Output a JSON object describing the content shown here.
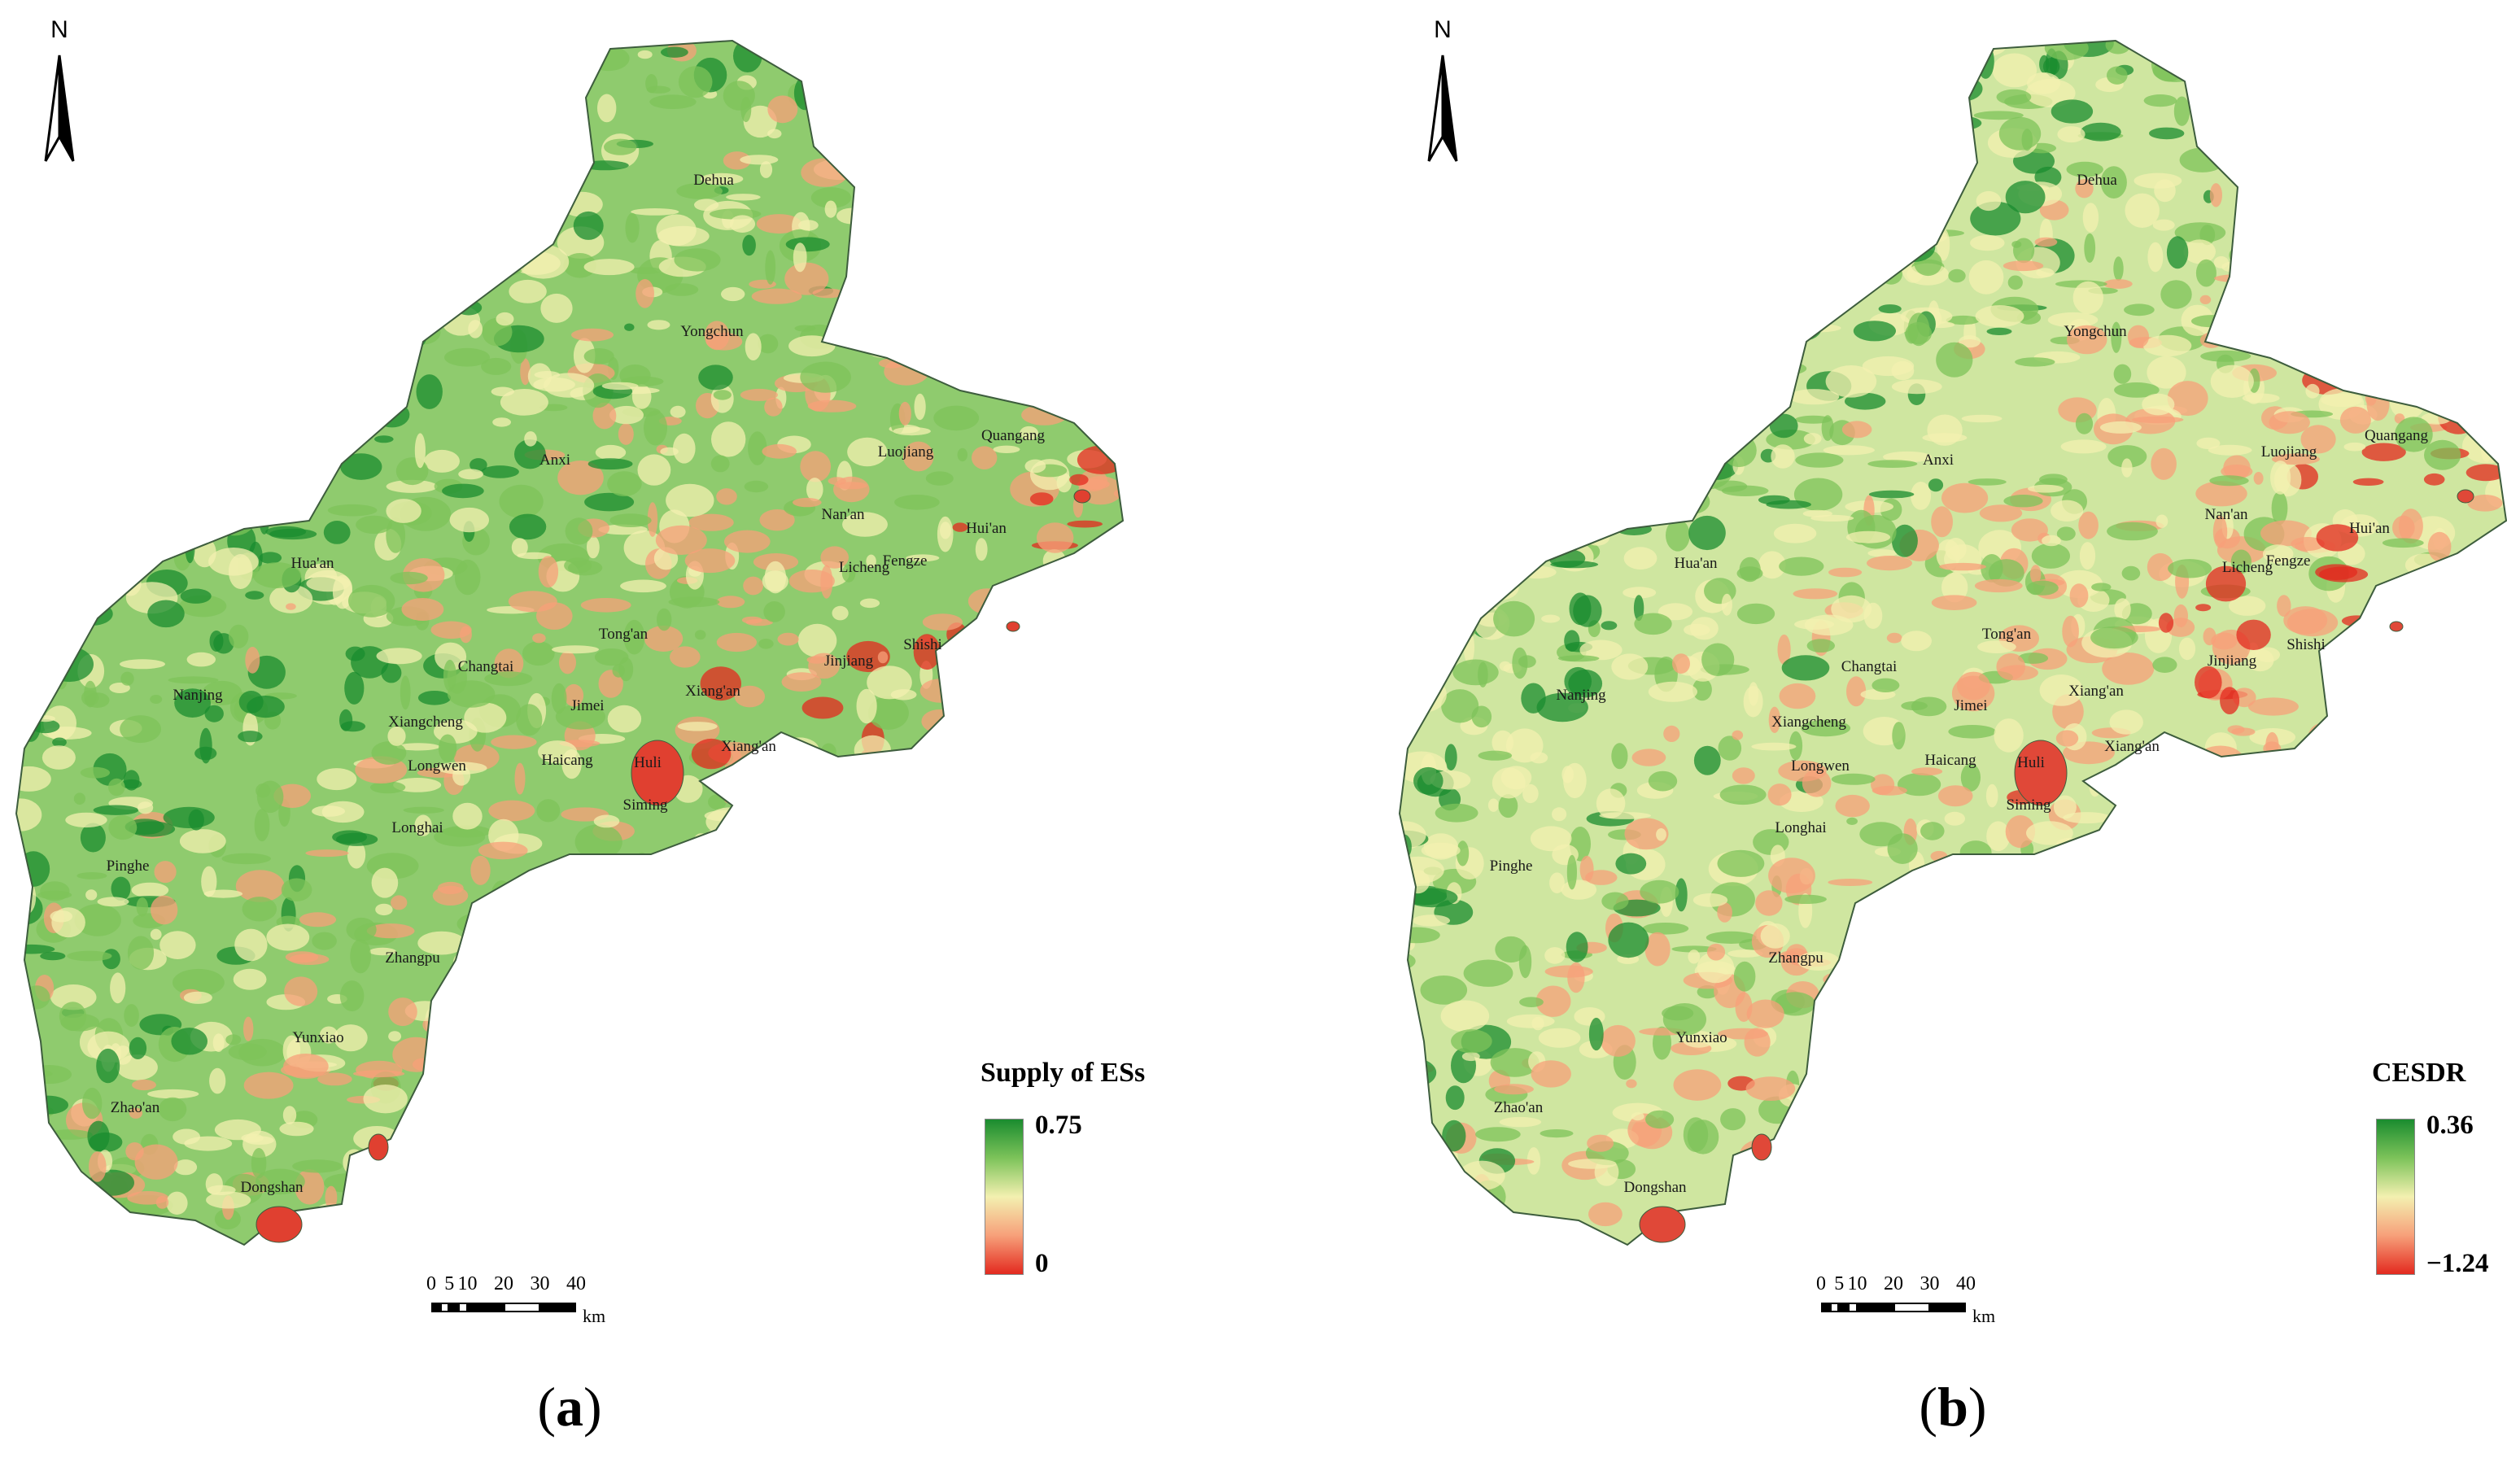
{
  "panels": [
    {
      "id": "a",
      "label_open": "(",
      "label_letter": "a",
      "label_close": ")",
      "north_letter": "N",
      "legend": {
        "title": "Supply of ESs",
        "max": "0.75",
        "min": "0",
        "colors": [
          "#1a8c2f",
          "#7dc35a",
          "#f3f0b0",
          "#f7a07a",
          "#e32a1f"
        ]
      },
      "scale": {
        "ticks": [
          "0",
          "5",
          "10",
          "20",
          "30",
          "40"
        ],
        "unit": "km"
      }
    },
    {
      "id": "b",
      "label_open": "(",
      "label_letter": "b",
      "label_close": ")",
      "north_letter": "N",
      "legend": {
        "title": "CESDR",
        "max": "0.36",
        "min": "−1.24",
        "colors": [
          "#1a8c2f",
          "#7dc35a",
          "#f3f0b0",
          "#f7a07a",
          "#e32a1f"
        ]
      },
      "scale": {
        "ticks": [
          "0",
          "5",
          "10",
          "20",
          "30",
          "40"
        ],
        "unit": "km"
      }
    }
  ],
  "places": [
    "Dehua",
    "Yongchun",
    "Anxi",
    "Luojiang",
    "Quangang",
    "Nan'an",
    "Hui'an",
    "Hua'an",
    "Licheng",
    "Fengze",
    "Changtai",
    "Tong'an",
    "Shishi",
    "Jinjiang",
    "Nanjing",
    "Xiangcheng",
    "Jimei",
    "Xiang'an",
    "Xiang'an",
    "Longwen",
    "Haicang",
    "Huli",
    "Siming",
    "Longhai",
    "Pinghe",
    "Zhangpu",
    "Yunxiao",
    "Zhao'an",
    "Dongshan"
  ]
}
